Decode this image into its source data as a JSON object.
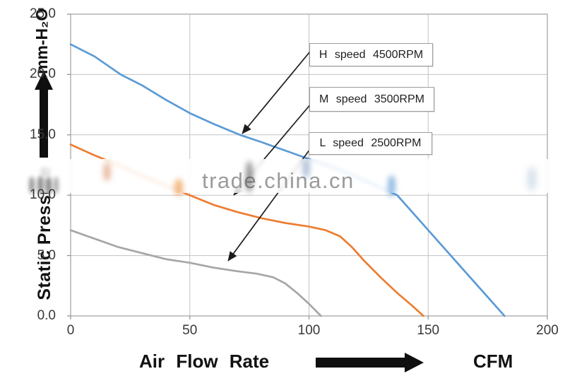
{
  "watermark": {
    "text": "trade.china.cn"
  },
  "y_axis": {
    "unit_label": "mm-H₂O",
    "title": "Static Pressure"
  },
  "x_axis": {
    "title": "Air Flow Rate",
    "unit_label": "CFM"
  },
  "annotations": {
    "boxes": [
      {
        "text": "H speed 4500RPM",
        "series": "H speed"
      },
      {
        "text": "M speed 3500RPM",
        "series": "M speed"
      },
      {
        "text": "L speed 2500RPM",
        "series": "L speed"
      }
    ]
  },
  "chart_data": {
    "type": "line",
    "title": "",
    "xlabel": "Air Flow Rate (CFM)",
    "ylabel": "Static Pressure (mm-H2O)",
    "xlim": [
      0,
      200
    ],
    "ylim": [
      0,
      25
    ],
    "x_ticks": [
      0,
      50,
      100,
      150,
      200
    ],
    "x_tick_labels": [
      "0",
      "50",
      "100",
      "150",
      "200"
    ],
    "y_ticks": [
      0,
      5,
      10,
      15,
      20,
      25
    ],
    "y_tick_labels": [
      "0.0",
      "5.0",
      "10.0",
      "15.0",
      "20.0",
      "25.0"
    ],
    "grid": true,
    "legend_position": "annotated-boxes-with-arrows",
    "series": [
      {
        "name": "H speed 4500RPM",
        "color": "#5B9BD5",
        "points": [
          [
            0,
            22.5
          ],
          [
            10,
            21.5
          ],
          [
            21,
            20.0
          ],
          [
            30,
            19.1
          ],
          [
            40,
            17.9
          ],
          [
            50,
            16.8
          ],
          [
            60,
            15.9
          ],
          [
            71,
            15.0
          ],
          [
            80,
            14.4
          ],
          [
            90,
            13.7
          ],
          [
            100,
            13.0
          ],
          [
            110,
            12.3
          ],
          [
            120,
            11.5
          ],
          [
            128,
            10.8
          ],
          [
            137,
            10.0
          ],
          [
            146,
            8.0
          ],
          [
            155,
            6.0
          ],
          [
            164,
            4.0
          ],
          [
            173,
            2.0
          ],
          [
            182,
            0.0
          ]
        ]
      },
      {
        "name": "M speed 3500RPM",
        "color": "#ED7D31",
        "points": [
          [
            0,
            14.2
          ],
          [
            10,
            13.3
          ],
          [
            20,
            12.5
          ],
          [
            30,
            11.6
          ],
          [
            40,
            10.8
          ],
          [
            50,
            10.0
          ],
          [
            60,
            9.2
          ],
          [
            70,
            8.6
          ],
          [
            80,
            8.1
          ],
          [
            90,
            7.7
          ],
          [
            100,
            7.4
          ],
          [
            107,
            7.1
          ],
          [
            113,
            6.6
          ],
          [
            118,
            5.7
          ],
          [
            123,
            4.6
          ],
          [
            130,
            3.2
          ],
          [
            137,
            1.9
          ],
          [
            143,
            0.9
          ],
          [
            148,
            0.0
          ]
        ]
      },
      {
        "name": "L speed 2500RPM",
        "color": "#A6A6A6",
        "points": [
          [
            0,
            7.1
          ],
          [
            10,
            6.4
          ],
          [
            20,
            5.7
          ],
          [
            30,
            5.2
          ],
          [
            40,
            4.7
          ],
          [
            50,
            4.4
          ],
          [
            60,
            4.0
          ],
          [
            70,
            3.7
          ],
          [
            78,
            3.5
          ],
          [
            85,
            3.2
          ],
          [
            90,
            2.7
          ],
          [
            95,
            1.9
          ],
          [
            100,
            1.0
          ],
          [
            105,
            0.0
          ]
        ]
      }
    ]
  }
}
